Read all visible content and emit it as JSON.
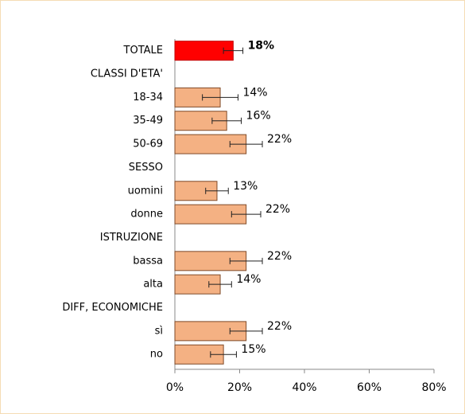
{
  "chart_data": {
    "type": "hbar",
    "categories": [
      "TOTALE",
      "CLASSI D'ETA'",
      "18-34",
      "35-49",
      "50-69",
      "SESSO",
      "uomini",
      "donne",
      "ISTRUZIONE",
      "bassa",
      "alta",
      "DIFF, ECONOMICHE",
      "sì",
      "no"
    ],
    "values": [
      18,
      null,
      14,
      16,
      22,
      null,
      13,
      22,
      null,
      22,
      14,
      null,
      22,
      15
    ],
    "value_labels": [
      "18%",
      null,
      "14%",
      "16%",
      "22%",
      null,
      "13%",
      "22%",
      null,
      "22%",
      "14%",
      null,
      "22%",
      "15%"
    ],
    "errors": [
      3,
      null,
      5.5,
      4.5,
      5,
      null,
      3.5,
      4.5,
      null,
      5,
      3.5,
      null,
      5,
      4
    ],
    "colors": [
      "#ff0000",
      null,
      "#f4b183",
      "#f4b183",
      "#f4b183",
      null,
      "#f4b183",
      "#f4b183",
      null,
      "#f4b183",
      "#f4b183",
      null,
      "#f4b183",
      "#f4b183"
    ],
    "bold_rows": [
      0
    ],
    "xlim": [
      0,
      80
    ],
    "xticks": [
      {
        "value": 0,
        "label": "0%"
      },
      {
        "value": 20,
        "label": "20%"
      },
      {
        "value": 40,
        "label": "40%"
      },
      {
        "value": 60,
        "label": "60%"
      },
      {
        "value": 80,
        "label": "80%"
      }
    ]
  }
}
